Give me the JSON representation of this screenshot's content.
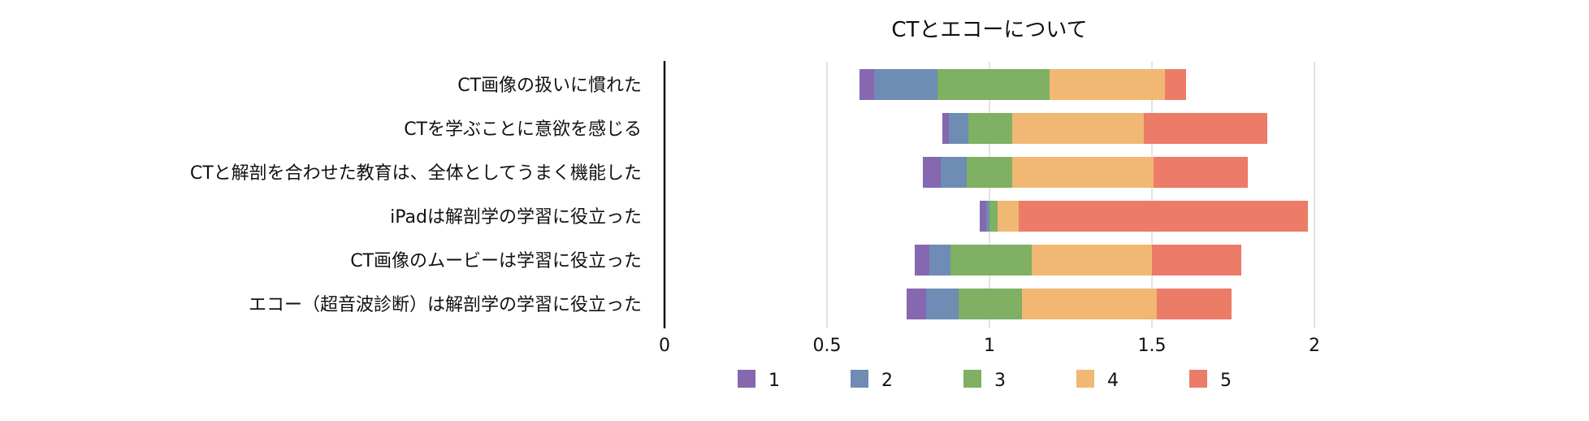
{
  "chart_data": {
    "type": "bar",
    "stacked": true,
    "orientation": "horizontal",
    "title": "CTとエコーについて",
    "categories": [
      "CT画像の扱いに慣れた",
      "CTを学ぶことに意欲を感じる",
      "CTと解剖を合わせた教育は、全体としてうまく機能した",
      "iPadは解剖学の学習に役立った",
      "CT画像のムービーは学習に役立った",
      "エコー（超音波診断）は解剖学の学習に役立った"
    ],
    "offsets": [
      0.6,
      0.855,
      0.795,
      0.97,
      0.77,
      0.745
    ],
    "series": [
      {
        "name": "1",
        "color": "#8668B0",
        "values": [
          0.045,
          0.02,
          0.055,
          0.02,
          0.045,
          0.06
        ]
      },
      {
        "name": "2",
        "color": "#6E8CB4",
        "values": [
          0.195,
          0.06,
          0.08,
          0.01,
          0.065,
          0.1
        ]
      },
      {
        "name": "3",
        "color": "#7FB063",
        "values": [
          0.345,
          0.135,
          0.14,
          0.025,
          0.25,
          0.195
        ]
      },
      {
        "name": "4",
        "color": "#F0B872",
        "values": [
          0.355,
          0.405,
          0.435,
          0.065,
          0.37,
          0.415
        ]
      },
      {
        "name": "5",
        "color": "#EC7B68",
        "values": [
          0.065,
          0.38,
          0.29,
          0.89,
          0.275,
          0.23
        ]
      }
    ],
    "xlim": [
      0,
      2
    ],
    "xticks": [
      "0",
      "0.5",
      "1",
      "1.5",
      "2"
    ],
    "xtick_values": [
      0,
      0.5,
      1,
      1.5,
      2
    ],
    "grid": true,
    "legend_position": "bottom"
  }
}
